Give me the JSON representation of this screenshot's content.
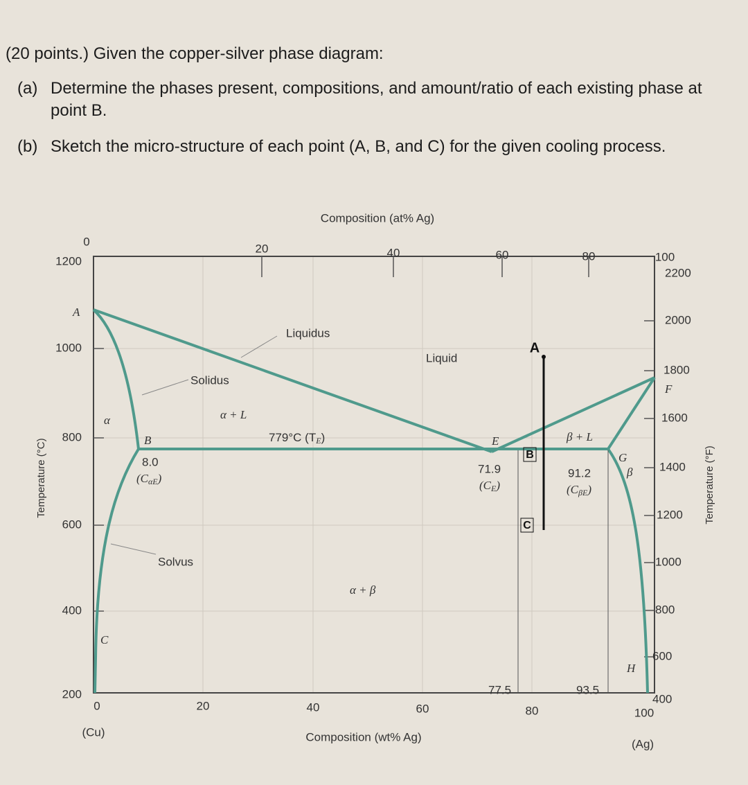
{
  "question": {
    "intro": "(20 points.) Given the copper-silver phase diagram:",
    "parts": [
      {
        "label": "(a)",
        "text": "Determine the phases present, compositions, and amount/ratio of each existing phase at point B."
      },
      {
        "label": "(b)",
        "text": "Sketch the micro-structure of each point (A, B, and C) for the given cooling process."
      }
    ]
  },
  "diagram": {
    "top_axis": {
      "title": "Composition (at% Ag)",
      "ticks": [
        0,
        20,
        40,
        60,
        80,
        100
      ]
    },
    "bottom_axis": {
      "title": "Composition (wt% Ag)",
      "ticks": [
        0,
        20,
        40,
        60,
        80,
        100
      ],
      "left_end": "(Cu)",
      "right_end": "(Ag)"
    },
    "left_axis": {
      "title": "Temperature (°C)",
      "ticks": [
        1200,
        1000,
        800,
        600,
        400,
        200
      ]
    },
    "right_axis": {
      "title": "Temperature (°F)",
      "ticks": [
        2200,
        2000,
        1800,
        1600,
        1400,
        1200,
        1000,
        800,
        600,
        400
      ]
    },
    "regions": [
      "Liquid",
      "α + L",
      "β + L",
      "α + β",
      "α",
      "β"
    ],
    "curve_labels": [
      "Liquidus",
      "Solidus",
      "Solvus"
    ],
    "points": [
      "A",
      "B",
      "C",
      "E",
      "F",
      "G",
      "H"
    ],
    "eutectic": {
      "text": "779°C (T",
      "sub": "E",
      "end": ")"
    },
    "compositions": [
      {
        "value": "8.0",
        "symbol": "(C",
        "sub": "αE",
        "end": ")"
      },
      {
        "value": "71.9",
        "symbol": "(C",
        "sub": "E",
        "end": ")"
      },
      {
        "value": "91.2",
        "symbol": "(C",
        "sub": "βE",
        "end": ")"
      }
    ],
    "vertical_labels": [
      "77.5",
      "93.5"
    ],
    "cooling_points": [
      "A",
      "B",
      "C"
    ]
  }
}
